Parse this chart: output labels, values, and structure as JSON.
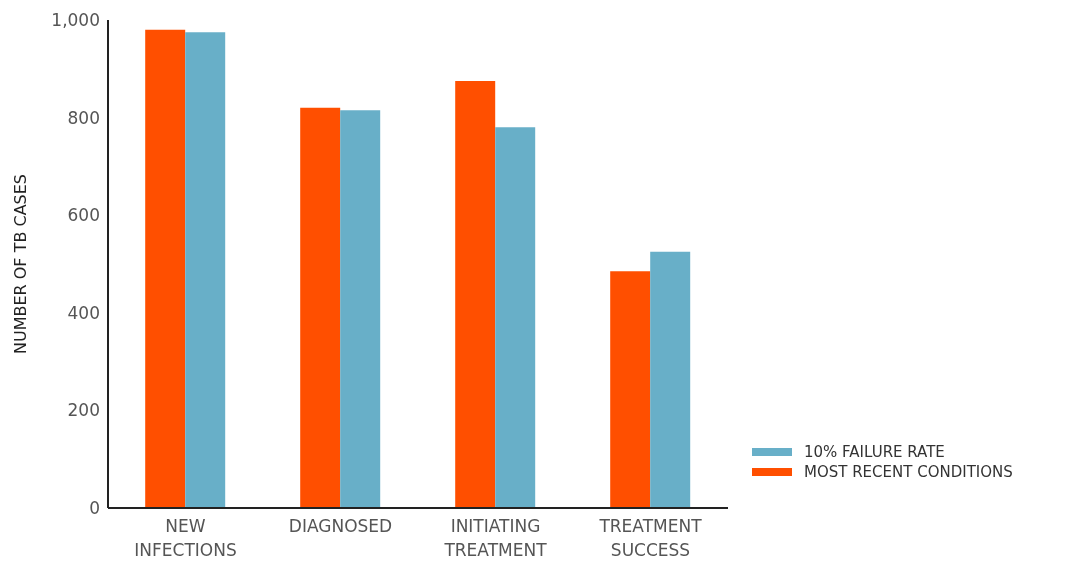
{
  "chart_data": {
    "type": "bar",
    "ylabel": "NUMBER OF TB CASES",
    "categories": [
      "NEW INFECTIONS",
      "DIAGNOSED",
      "INITIATING TREATMENT",
      "TREATMENT SUCCESS"
    ],
    "series": [
      {
        "name": "MOST RECENT CONDITIONS",
        "color": "#ff4f00",
        "values": [
          980,
          820,
          875,
          485
        ]
      },
      {
        "name": "10% FAILURE RATE",
        "color": "#68afc8",
        "values": [
          975,
          815,
          780,
          525
        ]
      }
    ],
    "ylim": [
      0,
      1000
    ],
    "yticks": [
      0,
      200,
      400,
      600,
      800,
      {
        "value": 1000,
        "label": "1,000"
      }
    ],
    "grid": false,
    "legend": "right"
  }
}
